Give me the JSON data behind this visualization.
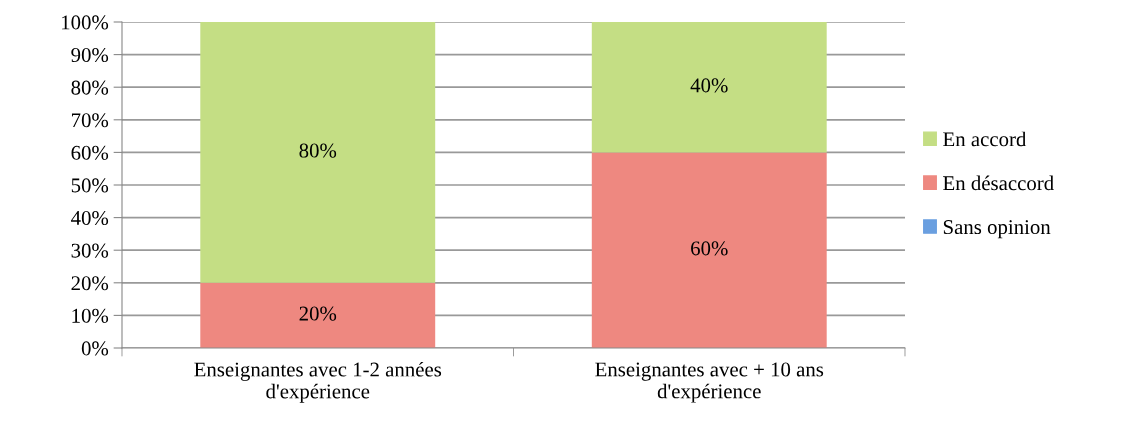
{
  "chart_data": {
    "type": "bar",
    "stacked": true,
    "categories": [
      "Enseignantes avec 1-2 années\nd'expérience",
      "Enseignantes avec + 10 ans\nd'expérience"
    ],
    "series": [
      {
        "name": "Sans opinion",
        "color": "#6a9fe0",
        "values": [
          0,
          0
        ],
        "value_labels": [
          null,
          null
        ]
      },
      {
        "name": "En désaccord",
        "color": "#ee8880",
        "values": [
          20,
          60
        ],
        "value_labels": [
          "20%",
          "60%"
        ]
      },
      {
        "name": "En accord",
        "color": "#c4de84",
        "values": [
          80,
          40
        ],
        "value_labels": [
          "80%",
          "40%"
        ]
      }
    ],
    "ylim": [
      0,
      100
    ],
    "yticks": [
      {
        "value": 0,
        "label": "0%"
      },
      {
        "value": 10,
        "label": "10%"
      },
      {
        "value": 20,
        "label": "20%"
      },
      {
        "value": 30,
        "label": "30%"
      },
      {
        "value": 40,
        "label": "40%"
      },
      {
        "value": 50,
        "label": "50%"
      },
      {
        "value": 60,
        "label": "60%"
      },
      {
        "value": 70,
        "label": "70%"
      },
      {
        "value": 80,
        "label": "80%"
      },
      {
        "value": 90,
        "label": "90%"
      },
      {
        "value": 100,
        "label": "100%"
      }
    ],
    "grid": "y",
    "legend": "right"
  }
}
